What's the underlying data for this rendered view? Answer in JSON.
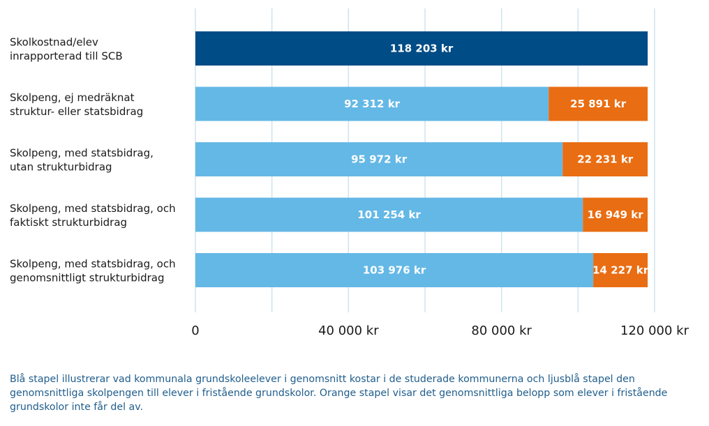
{
  "chart_data": {
    "type": "bar",
    "orientation": "horizontal",
    "stacked": true,
    "categories": [
      [
        "Skolkostnad/elev",
        "inrapporterad till SCB"
      ],
      [
        "Skolpeng, ej medräknat",
        "struktur- eller statsbidrag"
      ],
      [
        "Skolpeng, med statsbidrag,",
        "utan strukturbidrag"
      ],
      [
        "Skolpeng, med statsbidrag, och",
        "faktiskt strukturbidrag"
      ],
      [
        "Skolpeng, med statsbidrag, och",
        "genomsnittligt strukturbidrag"
      ]
    ],
    "series": [
      {
        "values": [
          118203,
          92312,
          95972,
          101254,
          103976
        ],
        "labels": [
          "118 203 kr",
          "92 312 kr",
          "95 972 kr",
          "101 254 kr",
          "103 976 kr"
        ],
        "colors": [
          "#004c86",
          "#64b8e6",
          "#64b8e6",
          "#64b8e6",
          "#64b8e6"
        ]
      },
      {
        "values": [
          0,
          25891,
          22231,
          16949,
          14227
        ],
        "labels": [
          "",
          "25 891 kr",
          "22 231 kr",
          "16 949 kr",
          "14 227 kr"
        ],
        "colors": [
          "#e96d12",
          "#e96d12",
          "#e96d12",
          "#e96d12",
          "#e96d12"
        ]
      }
    ],
    "xlim": [
      0,
      120000
    ],
    "xticks": [
      {
        "value": 0,
        "label": "0"
      },
      {
        "value": 40000,
        "label": "40 000 kr"
      },
      {
        "value": 80000,
        "label": "80 000 kr"
      },
      {
        "value": 120000,
        "label": "120 000 kr"
      }
    ],
    "gridlines": [
      0,
      20000,
      40000,
      60000,
      80000,
      100000,
      120000
    ],
    "grid": true,
    "gridline_color": "#cfe3ef"
  },
  "caption": "Blå stapel illustrerar vad kommunala grundskoleelever i genomsnitt kostar i de studerade kommunerna och ljusblå stapel den genomsnittliga skolpengen till elever i fristående grundskolor. Orange stapel visar det genomsnittliga belopp som elever i fristående grundskolor inte får del av."
}
